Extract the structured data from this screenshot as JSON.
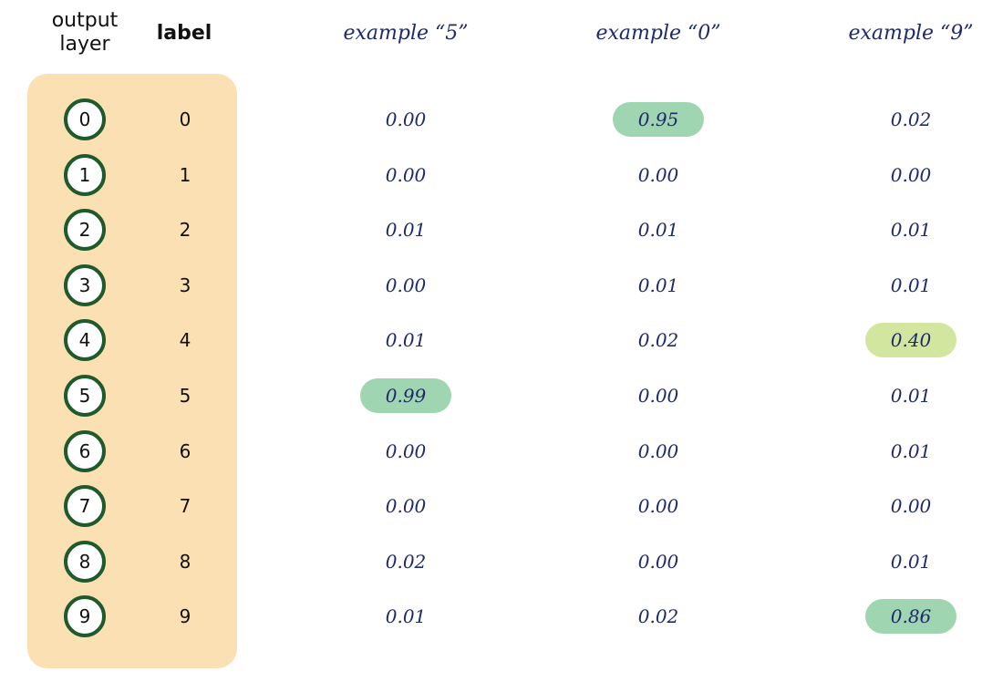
{
  "headers": {
    "output_layer": [
      "output",
      "layer"
    ],
    "label": "label"
  },
  "examples": [
    {
      "title": "example “5”",
      "values": [
        "0.00",
        "0.00",
        "0.01",
        "0.00",
        "0.01",
        "0.99",
        "0.00",
        "0.00",
        "0.02",
        "0.01"
      ],
      "highlight": {
        "5": "#9fd5b0"
      }
    },
    {
      "title": "example “0”",
      "values": [
        "0.95",
        "0.00",
        "0.01",
        "0.01",
        "0.02",
        "0.00",
        "0.00",
        "0.00",
        "0.00",
        "0.02"
      ],
      "highlight": {
        "0": "#9fd5b0"
      }
    },
    {
      "title": "example “9”",
      "values": [
        "0.02",
        "0.00",
        "0.01",
        "0.01",
        "0.40",
        "0.01",
        "0.01",
        "0.00",
        "0.01",
        "0.86"
      ],
      "highlight": {
        "4": "#d3e6a0",
        "9": "#9fd5b0"
      }
    }
  ],
  "labels": [
    "0",
    "1",
    "2",
    "3",
    "4",
    "5",
    "6",
    "7",
    "8",
    "9"
  ],
  "colors": {
    "panel": "#fbe0b3",
    "node_ring": "#1f5a2c",
    "value_text": "#1e2a6b",
    "header_example": "#1e2a6b"
  }
}
